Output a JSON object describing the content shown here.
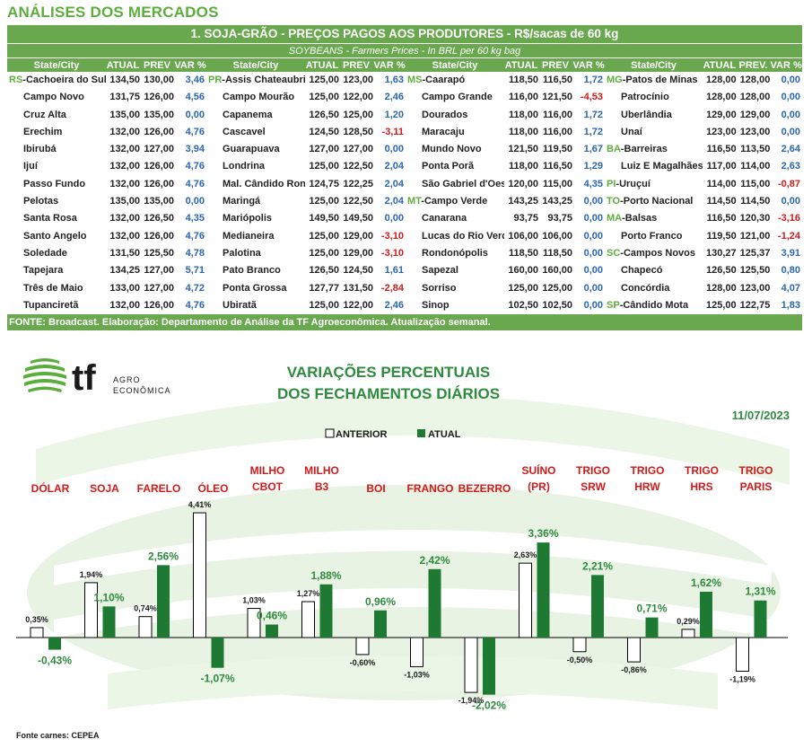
{
  "page_heading": "ANÁLISES DOS MERCADOS",
  "table": {
    "title": "1. SOJA-GRÃO - PREÇOS PAGOS AOS PRODUTORES - R$/sacas de 60 kg",
    "subtitle": "SOYBEANS - Farmers Prices - In BRL per 60 kg bag",
    "footer": "FONTE: Broadcast. Elaboração: Departamento de Análise da TF Agroeconômica. Atualização semanal.",
    "groups": [
      {
        "headers": [
          "State/City",
          "ATUAL",
          "PREV",
          "VAR %"
        ],
        "rows": [
          {
            "st": "RS",
            "city": "-Cachoeira do Sul",
            "atual": "134,50",
            "prev": "130,00",
            "var": "3,46",
            "sign": "pos"
          },
          {
            "st": "",
            "city": "Campo Novo",
            "atual": "131,75",
            "prev": "126,00",
            "var": "4,56",
            "sign": "pos"
          },
          {
            "st": "",
            "city": "Cruz Alta",
            "atual": "135,00",
            "prev": "135,00",
            "var": "0,00",
            "sign": "zero"
          },
          {
            "st": "",
            "city": "Erechim",
            "atual": "132,00",
            "prev": "126,00",
            "var": "4,76",
            "sign": "pos"
          },
          {
            "st": "",
            "city": "Ibirubá",
            "atual": "132,00",
            "prev": "127,00",
            "var": "3,94",
            "sign": "pos"
          },
          {
            "st": "",
            "city": "Ijuí",
            "atual": "132,00",
            "prev": "126,00",
            "var": "4,76",
            "sign": "pos"
          },
          {
            "st": "",
            "city": "Passo Fundo",
            "atual": "132,00",
            "prev": "126,00",
            "var": "4,76",
            "sign": "pos"
          },
          {
            "st": "",
            "city": "Pelotas",
            "atual": "135,00",
            "prev": "135,00",
            "var": "0,00",
            "sign": "zero"
          },
          {
            "st": "",
            "city": "Santa Rosa",
            "atual": "132,00",
            "prev": "126,50",
            "var": "4,35",
            "sign": "pos"
          },
          {
            "st": "",
            "city": "Santo Angelo",
            "atual": "132,00",
            "prev": "126,00",
            "var": "4,76",
            "sign": "pos"
          },
          {
            "st": "",
            "city": "Soledade",
            "atual": "131,50",
            "prev": "125,50",
            "var": "4,78",
            "sign": "pos"
          },
          {
            "st": "",
            "city": "Tapejara",
            "atual": "134,25",
            "prev": "127,00",
            "var": "5,71",
            "sign": "pos"
          },
          {
            "st": "",
            "city": "Três de Maio",
            "atual": "133,00",
            "prev": "127,00",
            "var": "4,72",
            "sign": "pos"
          },
          {
            "st": "",
            "city": "Tupanciretã",
            "atual": "132,00",
            "prev": "126,00",
            "var": "4,76",
            "sign": "pos"
          }
        ]
      },
      {
        "headers": [
          "State/City",
          "ATUAL",
          "PREV",
          "VAR %"
        ],
        "rows": [
          {
            "st": "PR",
            "city": "-Assis Chateaubriand",
            "atual": "125,00",
            "prev": "123,00",
            "var": "1,63",
            "sign": "pos"
          },
          {
            "st": "",
            "city": "Campo Mourão",
            "atual": "125,00",
            "prev": "122,00",
            "var": "2,46",
            "sign": "pos"
          },
          {
            "st": "",
            "city": "Capanema",
            "atual": "126,50",
            "prev": "125,00",
            "var": "1,20",
            "sign": "pos"
          },
          {
            "st": "",
            "city": "Cascavel",
            "atual": "124,50",
            "prev": "128,50",
            "var": "-3,11",
            "sign": "neg"
          },
          {
            "st": "",
            "city": "Guarapuava",
            "atual": "127,00",
            "prev": "127,00",
            "var": "0,00",
            "sign": "zero"
          },
          {
            "st": "",
            "city": "Londrina",
            "atual": "125,00",
            "prev": "122,50",
            "var": "2,04",
            "sign": "pos"
          },
          {
            "st": "",
            "city": "Mal. Cândido Rondon",
            "atual": "124,75",
            "prev": "122,25",
            "var": "2,04",
            "sign": "pos"
          },
          {
            "st": "",
            "city": "Maringá",
            "atual": "125,00",
            "prev": "122,50",
            "var": "2,04",
            "sign": "pos"
          },
          {
            "st": "",
            "city": "Mariópolis",
            "atual": "149,50",
            "prev": "149,50",
            "var": "0,00",
            "sign": "zero"
          },
          {
            "st": "",
            "city": "Medianeira",
            "atual": "125,00",
            "prev": "129,00",
            "var": "-3,10",
            "sign": "neg"
          },
          {
            "st": "",
            "city": "Palotina",
            "atual": "125,00",
            "prev": "129,00",
            "var": "-3,10",
            "sign": "neg"
          },
          {
            "st": "",
            "city": "Pato Branco",
            "atual": "126,50",
            "prev": "124,50",
            "var": "1,61",
            "sign": "pos"
          },
          {
            "st": "",
            "city": "Ponta Grossa",
            "atual": "127,77",
            "prev": "131,50",
            "var": "-2,84",
            "sign": "neg"
          },
          {
            "st": "",
            "city": "Ubiratã",
            "atual": "125,00",
            "prev": "122,00",
            "var": "2,46",
            "sign": "pos"
          }
        ]
      },
      {
        "headers": [
          "State/City",
          "ATUAL",
          "PREV",
          "VAR %"
        ],
        "rows": [
          {
            "st": "MS",
            "city": "-Caarapó",
            "atual": "118,50",
            "prev": "116,50",
            "var": "1,72",
            "sign": "pos"
          },
          {
            "st": "",
            "city": "Campo Grande",
            "atual": "116,00",
            "prev": "121,50",
            "var": "-4,53",
            "sign": "neg"
          },
          {
            "st": "",
            "city": "Dourados",
            "atual": "118,00",
            "prev": "116,00",
            "var": "1,72",
            "sign": "pos"
          },
          {
            "st": "",
            "city": "Maracaju",
            "atual": "118,00",
            "prev": "116,00",
            "var": "1,72",
            "sign": "pos"
          },
          {
            "st": "",
            "city": "Mundo Novo",
            "atual": "121,50",
            "prev": "119,50",
            "var": "1,67",
            "sign": "pos"
          },
          {
            "st": "",
            "city": "Ponta Porã",
            "atual": "118,00",
            "prev": "116,50",
            "var": "1,29",
            "sign": "pos"
          },
          {
            "st": "",
            "city": "São Gabriel d'Oest",
            "atual": "120,00",
            "prev": "115,00",
            "var": "4,35",
            "sign": "pos"
          },
          {
            "st": "MT",
            "city": "-Campo Verde",
            "atual": "143,25",
            "prev": "143,25",
            "var": "0,00",
            "sign": "zero"
          },
          {
            "st": "",
            "city": "Canarana",
            "atual": "93,75",
            "prev": "93,75",
            "var": "0,00",
            "sign": "zero"
          },
          {
            "st": "",
            "city": "Lucas do Rio Verde",
            "atual": "106,00",
            "prev": "106,00",
            "var": "0,00",
            "sign": "zero"
          },
          {
            "st": "",
            "city": "Rondonópolis",
            "atual": "118,50",
            "prev": "118,50",
            "var": "0,00",
            "sign": "zero"
          },
          {
            "st": "",
            "city": "Sapezal",
            "atual": "160,00",
            "prev": "160,00",
            "var": "0,00",
            "sign": "zero"
          },
          {
            "st": "",
            "city": "Sorriso",
            "atual": "125,00",
            "prev": "125,00",
            "var": "0,00",
            "sign": "zero"
          },
          {
            "st": "",
            "city": "Sinop",
            "atual": "102,50",
            "prev": "102,50",
            "var": "0,00",
            "sign": "zero"
          }
        ]
      },
      {
        "headers": [
          "State/City",
          "ATUAL",
          "PREV.",
          "VAR %"
        ],
        "rows": [
          {
            "st": "MG",
            "city": "-Patos de Minas",
            "atual": "128,00",
            "prev": "128,00",
            "var": "0,00",
            "sign": "zero"
          },
          {
            "st": "",
            "city": "Patrocínio",
            "atual": "128,00",
            "prev": "128,00",
            "var": "0,00",
            "sign": "zero"
          },
          {
            "st": "",
            "city": "Uberlândia",
            "atual": "129,00",
            "prev": "129,00",
            "var": "0,00",
            "sign": "zero"
          },
          {
            "st": "",
            "city": "Unaí",
            "atual": "123,00",
            "prev": "123,00",
            "var": "0,00",
            "sign": "zero"
          },
          {
            "st": "BA",
            "city": "-Barreiras",
            "atual": "116,50",
            "prev": "113,50",
            "var": "2,64",
            "sign": "pos"
          },
          {
            "st": "",
            "city": "Luiz E Magalhães",
            "atual": "117,00",
            "prev": "114,00",
            "var": "2,63",
            "sign": "pos"
          },
          {
            "st": "PI",
            "city": "-Uruçuí",
            "atual": "114,00",
            "prev": "115,00",
            "var": "-0,87",
            "sign": "neg"
          },
          {
            "st": "TO",
            "city": "-Porto Nacional",
            "atual": "114,50",
            "prev": "114,50",
            "var": "0,00",
            "sign": "zero"
          },
          {
            "st": "MA",
            "city": "-Balsas",
            "atual": "116,50",
            "prev": "120,30",
            "var": "-3,16",
            "sign": "neg"
          },
          {
            "st": "",
            "city": "Porto Franco",
            "atual": "119,50",
            "prev": "121,00",
            "var": "-1,24",
            "sign": "neg"
          },
          {
            "st": "SC",
            "city": "-Campos Novos",
            "atual": "130,27",
            "prev": "125,37",
            "var": "3,91",
            "sign": "pos"
          },
          {
            "st": "",
            "city": "Chapecó",
            "atual": "126,50",
            "prev": "125,50",
            "var": "0,80",
            "sign": "pos"
          },
          {
            "st": "",
            "city": "Concórdia",
            "atual": "128,00",
            "prev": "123,00",
            "var": "4,07",
            "sign": "pos"
          },
          {
            "st": "SP",
            "city": "-Cândido Mota",
            "atual": "125,00",
            "prev": "122,75",
            "var": "1,83",
            "sign": "pos"
          }
        ]
      }
    ]
  },
  "logo": {
    "letters": "tf",
    "line1": "AGRO",
    "line2": "ECONÔMICA"
  },
  "chart_data": {
    "type": "bar",
    "title": [
      "VARIAÇÕES PERCENTUAIS",
      "DOS FECHAMENTOS DIÁRIOS"
    ],
    "date": "11/07/2023",
    "legend": {
      "anterior": "ANTERIOR",
      "atual": "ATUAL"
    },
    "categories": [
      [
        "DÓLAR"
      ],
      [
        "SOJA"
      ],
      [
        "FARELO"
      ],
      [
        "ÓLEO"
      ],
      [
        "MILHO",
        "CBOT"
      ],
      [
        "MILHO",
        "B3"
      ],
      [
        "BOI"
      ],
      [
        "FRANGO"
      ],
      [
        "BEZERRO"
      ],
      [
        "SUÍNO",
        "(PR)"
      ],
      [
        "TRIGO",
        "SRW"
      ],
      [
        "TRIGO",
        "HRW"
      ],
      [
        "TRIGO",
        "HRS"
      ],
      [
        "TRIGO",
        "PARIS"
      ]
    ],
    "series": [
      {
        "name": "ANTERIOR",
        "values": [
          0.35,
          1.94,
          0.74,
          4.41,
          1.03,
          1.27,
          -0.6,
          -1.03,
          -1.94,
          2.63,
          -0.5,
          -0.86,
          0.29,
          -1.19
        ],
        "labels": [
          "0,35%",
          "1,94%",
          "0,74%",
          "4,41%",
          "1,03%",
          "1,27%",
          "-0,60%",
          "-1,03%",
          "-1,94%",
          "2,63%",
          "-0,50%",
          "-0,86%",
          "0,29%",
          "-1,19%"
        ]
      },
      {
        "name": "ATUAL",
        "values": [
          -0.43,
          1.1,
          2.56,
          -1.07,
          0.46,
          1.88,
          0.96,
          2.42,
          -2.02,
          3.36,
          2.21,
          0.71,
          1.62,
          1.31
        ],
        "labels": [
          "-0,43%",
          "1,10%",
          "2,56%",
          "-1,07%",
          "0,46%",
          "1,88%",
          "0,96%",
          "2,42%",
          "-2,02%",
          "3,36%",
          "2,21%",
          "0,71%",
          "1,62%",
          "1,31%"
        ]
      }
    ],
    "category_colors": [
      "#d11a1a",
      "#d11a1a",
      "#d11a1a",
      "#d11a1a",
      "#d11a1a",
      "#d11a1a",
      "#d11a1a",
      "#d11a1a",
      "#d11a1a",
      "#d11a1a",
      "#d11a1a",
      "#d11a1a",
      "#d11a1a",
      "#d11a1a"
    ],
    "colors": {
      "atual": "#1e7a32",
      "anterior": "#ffffff",
      "title": "#2e8b3e",
      "category": "#d11a1a"
    }
  },
  "source_note": "Fonte carnes: CEPEA"
}
